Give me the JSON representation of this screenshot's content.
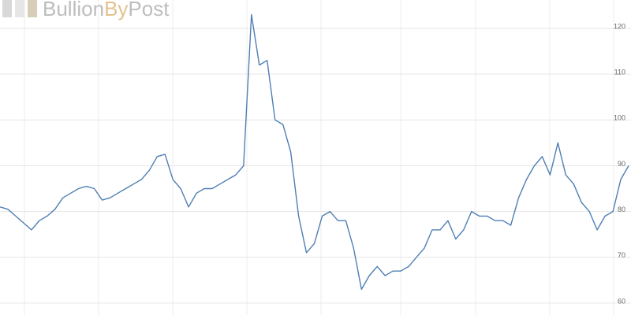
{
  "logo": [
    "Bullion",
    "By",
    "Post"
  ],
  "chart_data": {
    "type": "line",
    "color": "#4f7fb3",
    "grid": true,
    "values": [
      81,
      80.5,
      79,
      77.5,
      76,
      78,
      79,
      80.5,
      83,
      84,
      85,
      85.5,
      85,
      82.5,
      83,
      84,
      85,
      86,
      87,
      89,
      92,
      92.5,
      87,
      85,
      81,
      84,
      85,
      85,
      86,
      87,
      88,
      90,
      123,
      112,
      113,
      100,
      99,
      93,
      79,
      71,
      73,
      79,
      80,
      78,
      78,
      72,
      63,
      66,
      68,
      66,
      67,
      67,
      68,
      70,
      72,
      76,
      76,
      78,
      74,
      76,
      80,
      79,
      79,
      78,
      78,
      77,
      83,
      87,
      90,
      92,
      88,
      95,
      88,
      86,
      82,
      80,
      76,
      79,
      80,
      87,
      90
    ],
    "ylim": [
      57.4,
      126.2
    ],
    "yticks": [
      60,
      70,
      80,
      90,
      100,
      110,
      120
    ]
  }
}
